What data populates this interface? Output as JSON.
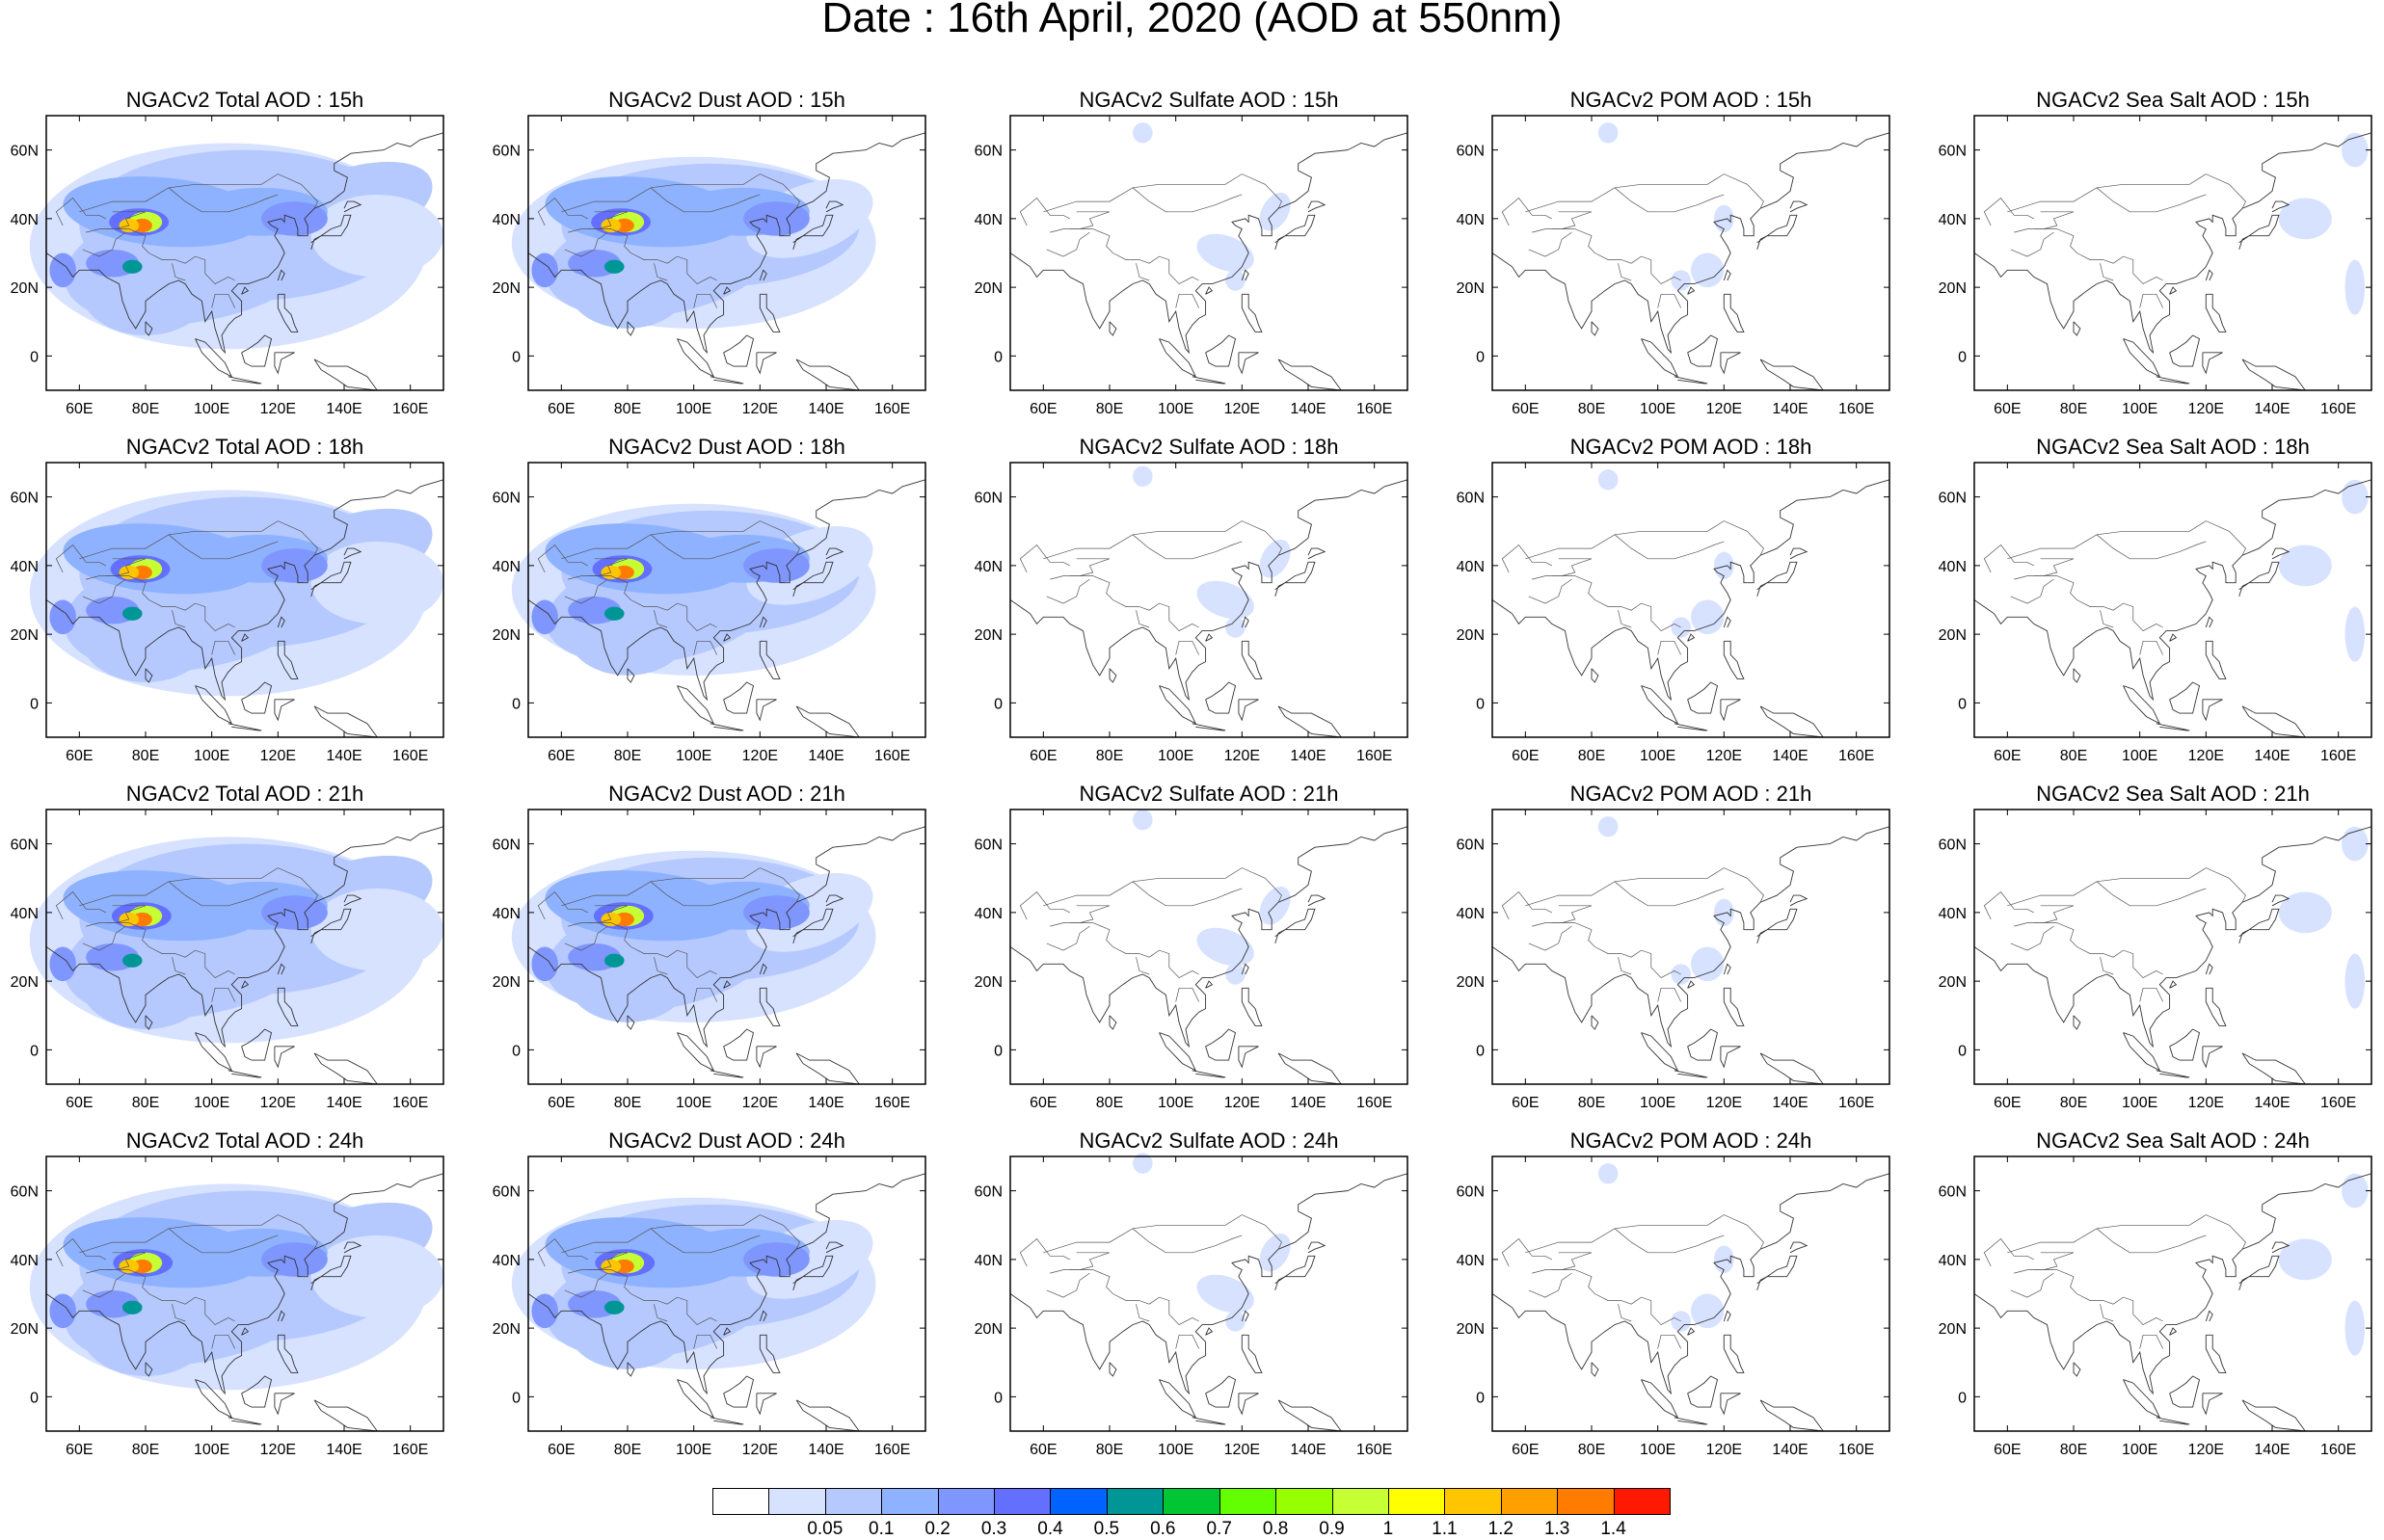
{
  "title": "Date : 16th April, 2020 (AOD at 550nm)",
  "axes": {
    "x_ticks": [
      "60E",
      "80E",
      "100E",
      "120E",
      "140E",
      "160E"
    ],
    "y_ticks": [
      "60N",
      "40N",
      "20N",
      "0"
    ],
    "lon_range": [
      50,
      170
    ],
    "lat_range": [
      -10,
      70
    ]
  },
  "panels": [
    {
      "title": "NGACv2 Total AOD : 15h",
      "species": "total"
    },
    {
      "title": "NGACv2 Dust AOD : 15h",
      "species": "dust"
    },
    {
      "title": "NGACv2 Sulfate AOD : 15h",
      "species": "sulfate"
    },
    {
      "title": "NGACv2 POM AOD : 15h",
      "species": "pom"
    },
    {
      "title": "NGACv2 Sea Salt AOD : 15h",
      "species": "seasalt"
    },
    {
      "title": "NGACv2 Total AOD : 18h",
      "species": "total"
    },
    {
      "title": "NGACv2 Dust AOD : 18h",
      "species": "dust"
    },
    {
      "title": "NGACv2 Sulfate AOD : 18h",
      "species": "sulfate"
    },
    {
      "title": "NGACv2 POM AOD : 18h",
      "species": "pom"
    },
    {
      "title": "NGACv2 Sea Salt AOD : 18h",
      "species": "seasalt"
    },
    {
      "title": "NGACv2 Total AOD : 21h",
      "species": "total"
    },
    {
      "title": "NGACv2 Dust AOD : 21h",
      "species": "dust"
    },
    {
      "title": "NGACv2 Sulfate AOD : 21h",
      "species": "sulfate"
    },
    {
      "title": "NGACv2 POM AOD : 21h",
      "species": "pom"
    },
    {
      "title": "NGACv2 Sea Salt AOD : 21h",
      "species": "seasalt"
    },
    {
      "title": "NGACv2 Total AOD : 24h",
      "species": "total"
    },
    {
      "title": "NGACv2 Dust AOD : 24h",
      "species": "dust"
    },
    {
      "title": "NGACv2 Sulfate AOD : 24h",
      "species": "sulfate"
    },
    {
      "title": "NGACv2 POM AOD : 24h",
      "species": "pom"
    },
    {
      "title": "NGACv2 Sea Salt  AOD : 24h",
      "species": "seasalt"
    }
  ],
  "colorbar": {
    "labels": [
      "0.05",
      "0.1",
      "0.2",
      "0.3",
      "0.4",
      "0.5",
      "0.6",
      "0.7",
      "0.8",
      "0.9",
      "1",
      "1.1",
      "1.2",
      "1.3",
      "1.4"
    ],
    "colors": [
      "#ffffff",
      "#d6e2ff",
      "#b5c9ff",
      "#8eb2ff",
      "#7f96ff",
      "#6370ff",
      "#0063ff",
      "#009696",
      "#00c633",
      "#63ff00",
      "#96ff00",
      "#c6ff33",
      "#ffff00",
      "#ffc600",
      "#ffa000",
      "#ff7c00",
      "#ff1900"
    ]
  }
}
